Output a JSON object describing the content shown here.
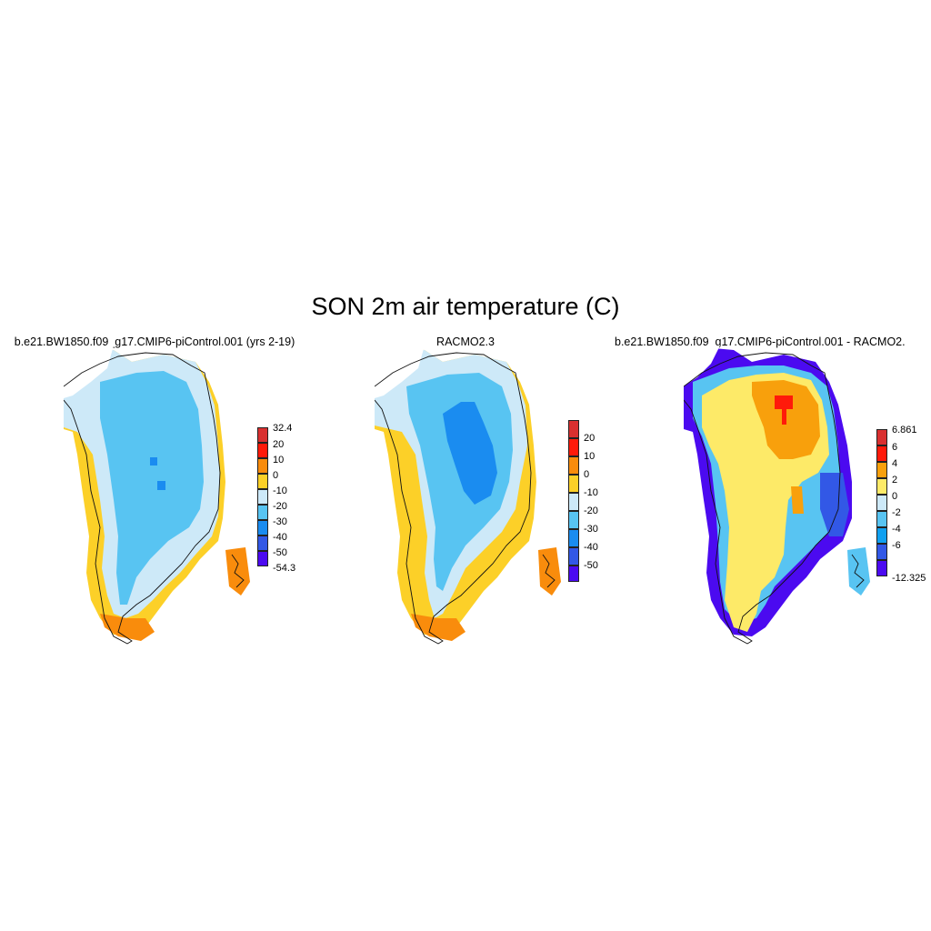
{
  "figure": {
    "title": "SON 2m air temperature (C)"
  },
  "panels": [
    {
      "title": "b.e21.BW1850.f09_g17.CMIP6-piControl.001 (yrs 2-19)",
      "colorbar": {
        "labels": [
          "32.4",
          "20",
          "10",
          "0",
          "-10",
          "-20",
          "-30",
          "-40",
          "-50",
          "-54.3"
        ],
        "colors": [
          "#d93030",
          "#ff1a0a",
          "#f98c0c",
          "#fcd028",
          "#cde9f8",
          "#58c4f2",
          "#1a8cf0",
          "#3258e6",
          "#4b0af0"
        ]
      }
    },
    {
      "title": "RACMO2.3",
      "colorbar": {
        "labels": [
          "20",
          "10",
          "0",
          "-10",
          "-20",
          "-30",
          "-40",
          "-50"
        ],
        "colors": [
          "#d93030",
          "#ff1a0a",
          "#f98c0c",
          "#fcd028",
          "#cde9f8",
          "#58c4f2",
          "#1a8cf0",
          "#3258e6",
          "#4b0af0"
        ]
      }
    },
    {
      "title": "b.e21.BW1850.f09_g17.CMIP6-piControl.001 - RACMO2.",
      "colorbar": {
        "labels": [
          "6.861",
          "6",
          "4",
          "2",
          "0",
          "-2",
          "-4",
          "-6",
          "-12.325"
        ],
        "colors": [
          "#d93030",
          "#ff1a0a",
          "#f8a00c",
          "#fdea68",
          "#cde9f8",
          "#58c4f2",
          "#10a0f0",
          "#3258e6",
          "#4b0af0"
        ]
      }
    }
  ],
  "legend_colors": {
    "ice_core_model": "#58c4f2",
    "ice_core_racmo": "#1a8cf0",
    "coast": "#cde9f8",
    "diff_interior": "#fdea68",
    "diff_north": "#f8a00c",
    "diff_max": "#ff1a0a",
    "diff_edge": "#4b0af0"
  }
}
